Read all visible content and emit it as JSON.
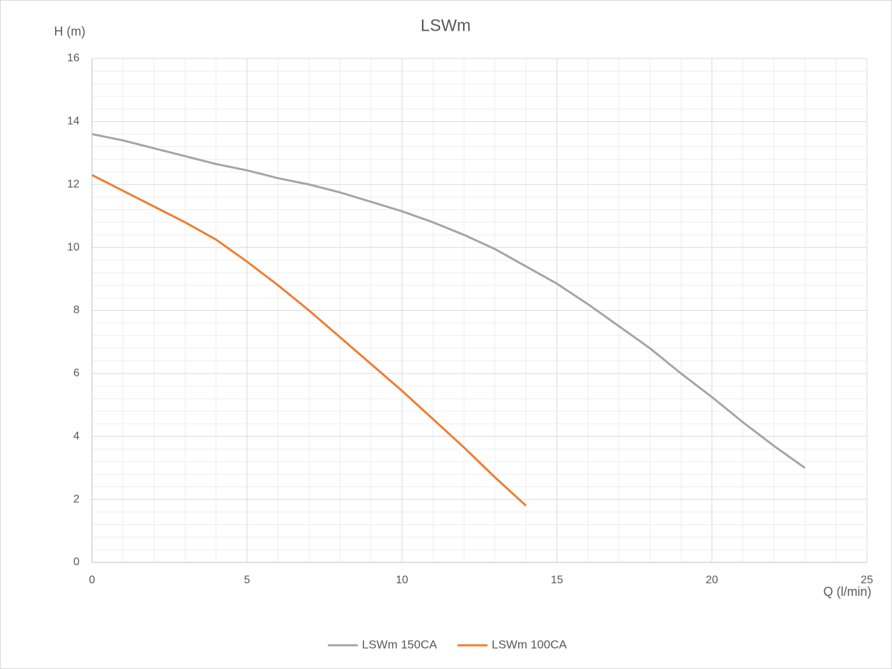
{
  "chart_data": {
    "type": "line",
    "title": "LSWm",
    "y_label": "H (m)",
    "x_label": "Q (l/min)",
    "xlim": [
      0,
      25
    ],
    "xticks": [
      0,
      5,
      10,
      15,
      20,
      25
    ],
    "ylim": [
      0,
      16
    ],
    "yticks": [
      0,
      2,
      4,
      6,
      8,
      10,
      12,
      14,
      16
    ],
    "grid": true,
    "minor_grid": true,
    "legend": "bottom",
    "series": [
      {
        "name": "LSWm 150CA",
        "color": "#a5a5a5",
        "x": [
          0,
          1,
          2,
          3,
          4,
          5,
          6,
          7,
          8,
          9,
          10,
          11,
          12,
          13,
          14,
          15,
          16,
          17,
          18,
          19,
          20,
          21,
          22,
          23
        ],
        "values": [
          13.6,
          13.4,
          13.15,
          12.9,
          12.65,
          12.45,
          12.2,
          12.0,
          11.75,
          11.45,
          11.15,
          10.8,
          10.4,
          9.95,
          9.4,
          8.85,
          8.2,
          7.5,
          6.8,
          6.0,
          5.25,
          4.45,
          3.7,
          3.0
        ]
      },
      {
        "name": "LSWm 100CA",
        "color": "#ed7d31",
        "x": [
          0,
          1,
          2,
          3,
          4,
          5,
          6,
          7,
          8,
          9,
          10,
          11,
          12,
          13,
          14
        ],
        "values": [
          12.3,
          11.8,
          11.3,
          10.8,
          10.25,
          9.55,
          8.8,
          8.0,
          7.15,
          6.3,
          5.45,
          4.55,
          3.65,
          2.7,
          1.8
        ]
      }
    ]
  }
}
